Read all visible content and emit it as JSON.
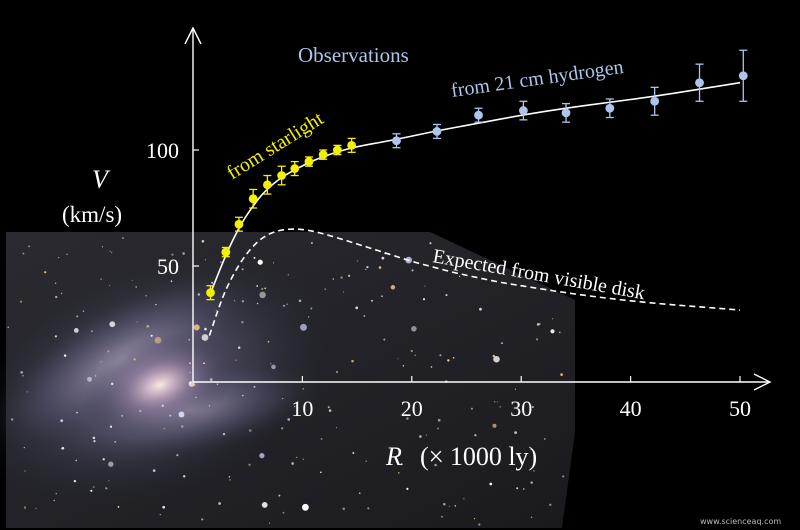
{
  "chart_data": {
    "type": "scatter",
    "xlabel_var": "R",
    "xlabel_unit": "(× 1000 ly)",
    "ylabel_var": "V",
    "ylabel_unit": "(km/s)",
    "x_ticks": [
      10,
      20,
      30,
      40,
      50
    ],
    "y_ticks": [
      50,
      100
    ],
    "xlim": [
      0,
      53
    ],
    "ylim": [
      0,
      140
    ],
    "heading": "Observations",
    "series": [
      {
        "name": "from starlight",
        "color": "#f3f000",
        "marker": "circle",
        "error_bars": true,
        "points": [
          {
            "x": 1.6,
            "y": 38.5,
            "err": 3
          },
          {
            "x": 3.0,
            "y": 56,
            "err": 2
          },
          {
            "x": 4.2,
            "y": 68,
            "err": 3
          },
          {
            "x": 5.5,
            "y": 79,
            "err": 4
          },
          {
            "x": 6.8,
            "y": 85,
            "err": 4
          },
          {
            "x": 8.1,
            "y": 89,
            "err": 4
          },
          {
            "x": 9.3,
            "y": 92,
            "err": 3
          },
          {
            "x": 10.6,
            "y": 95,
            "err": 2
          },
          {
            "x": 11.9,
            "y": 98,
            "err": 2
          },
          {
            "x": 13.2,
            "y": 100,
            "err": 2
          },
          {
            "x": 14.5,
            "y": 102,
            "err": 3
          }
        ]
      },
      {
        "name": "from 21 cm hydrogen",
        "color": "#aec4ec",
        "marker": "circle",
        "error_bars": true,
        "points": [
          {
            "x": 18.6,
            "y": 104,
            "err": 3
          },
          {
            "x": 22.3,
            "y": 108,
            "err": 3
          },
          {
            "x": 26.1,
            "y": 115,
            "err": 3
          },
          {
            "x": 30.2,
            "y": 117,
            "err": 4
          },
          {
            "x": 34.1,
            "y": 116,
            "err": 4
          },
          {
            "x": 38.1,
            "y": 118,
            "err": 4
          },
          {
            "x": 42.2,
            "y": 121,
            "err": 6
          },
          {
            "x": 46.3,
            "y": 129,
            "err": 8
          },
          {
            "x": 50.3,
            "y": 132,
            "err": 11
          }
        ]
      }
    ],
    "fit_curve": {
      "color": "#ffffff",
      "style": "solid",
      "points": [
        [
          1.5,
          37
        ],
        [
          2.5,
          49
        ],
        [
          3.5,
          60
        ],
        [
          4.5,
          69
        ],
        [
          5.5,
          76
        ],
        [
          6.5,
          82
        ],
        [
          8,
          88
        ],
        [
          9.5,
          92
        ],
        [
          11,
          95.5
        ],
        [
          13,
          99
        ],
        [
          15,
          101.5
        ],
        [
          18,
          104
        ],
        [
          22,
          108
        ],
        [
          26,
          111.5
        ],
        [
          30,
          115
        ],
        [
          34,
          118
        ],
        [
          38,
          120.5
        ],
        [
          42,
          123
        ],
        [
          46,
          126
        ],
        [
          50,
          129
        ]
      ]
    },
    "expected_curve": {
      "name": "Expected from visible disk",
      "color": "#ffffff",
      "style": "dashed",
      "points": [
        [
          1.5,
          20
        ],
        [
          2.2,
          30
        ],
        [
          3,
          40
        ],
        [
          4,
          49
        ],
        [
          5,
          56
        ],
        [
          6,
          61
        ],
        [
          7,
          64
        ],
        [
          8,
          65.5
        ],
        [
          9,
          66
        ],
        [
          10,
          65.8
        ],
        [
          11,
          65
        ],
        [
          12,
          63.8
        ],
        [
          14,
          61
        ],
        [
          16,
          58
        ],
        [
          18,
          55
        ],
        [
          20,
          52
        ],
        [
          22,
          49.5
        ],
        [
          24,
          47
        ],
        [
          26,
          45
        ],
        [
          28,
          43
        ],
        [
          30,
          41.5
        ],
        [
          34,
          38.5
        ],
        [
          38,
          36
        ],
        [
          42,
          34
        ],
        [
          46,
          32.5
        ],
        [
          50,
          31
        ]
      ]
    }
  },
  "footer": {
    "watermark": "www.scienceaq.com"
  }
}
